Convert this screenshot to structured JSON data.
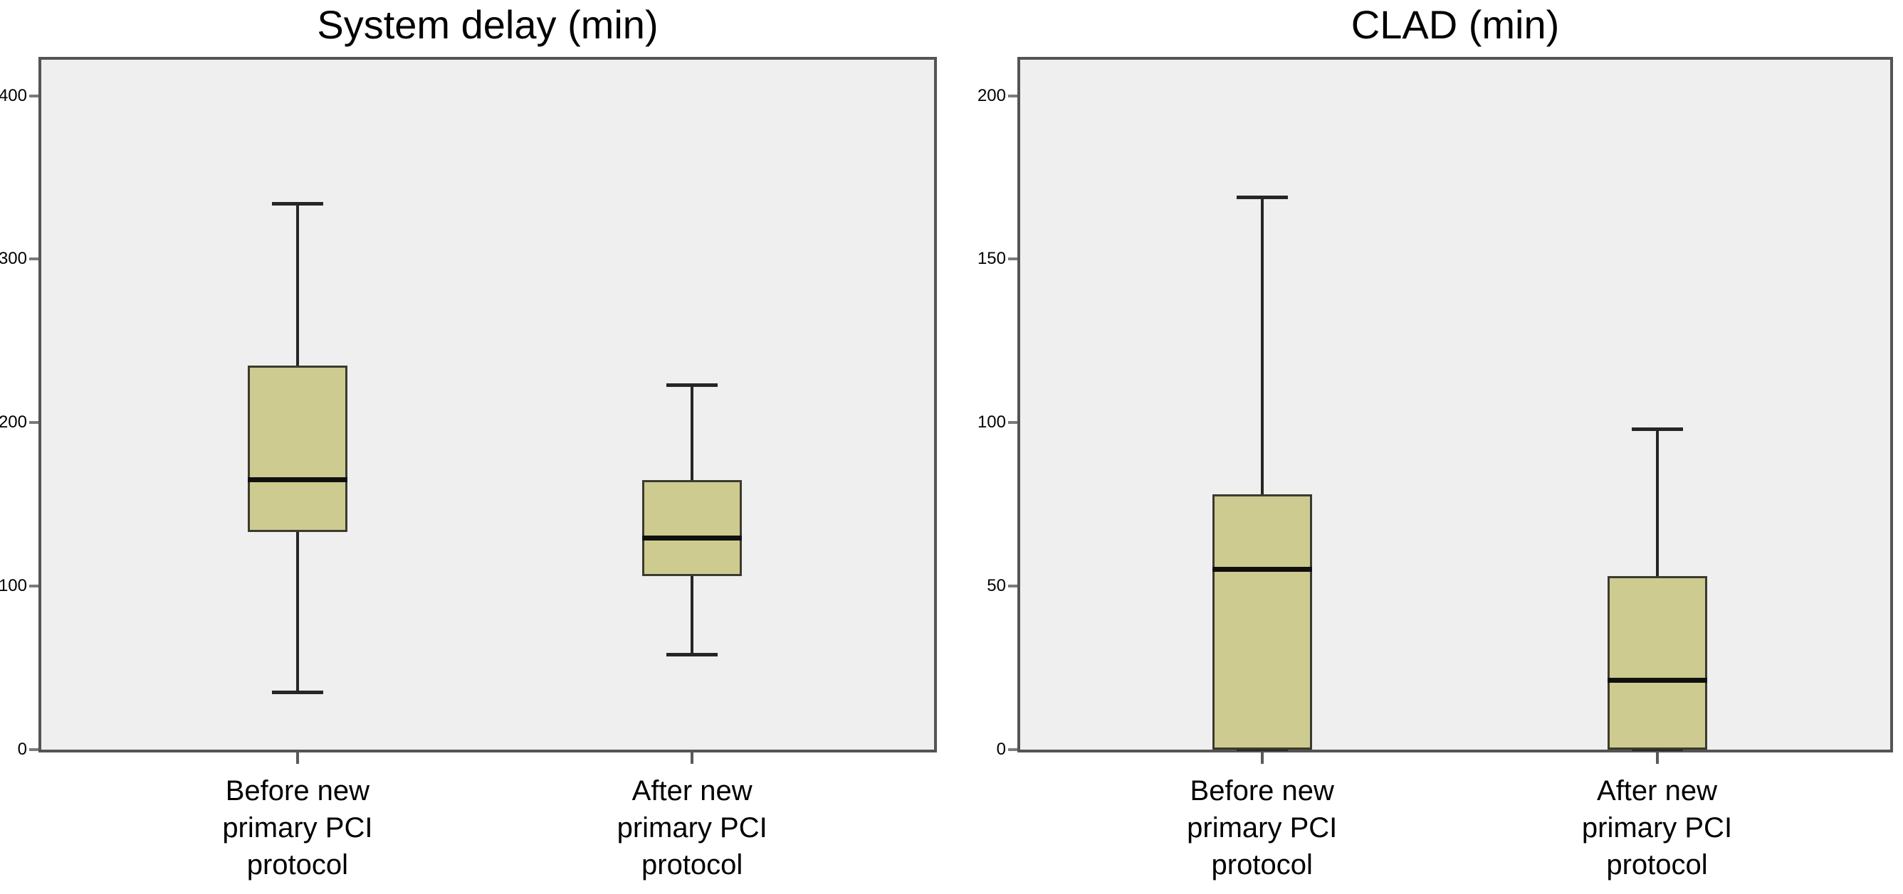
{
  "figure": {
    "background": "#ffffff"
  },
  "styles": {
    "box_fill": "#cecb90",
    "box_border": "#3b3b2f",
    "median_color": "#101010",
    "whisker_color": "#262626",
    "plot_background": "#f0eff0",
    "plot_border": "#545454",
    "ytick_mark_color": "#7a7a7a",
    "xtick_mark_color": "#5a5a5a",
    "text_color": "#000000"
  },
  "chart_data": [
    {
      "type": "boxplot",
      "title": "System delay (min)",
      "categories": [
        [
          "Before new",
          "primary PCI",
          "protocol"
        ],
        [
          "After new",
          "primary PCI",
          "protocol"
        ]
      ],
      "yticks": [
        0,
        100,
        200,
        300,
        400
      ],
      "ylim": [
        0,
        422
      ],
      "grid": false,
      "legend": false,
      "series": [
        {
          "name": "Before new primary PCI protocol",
          "min": 35,
          "q1": 133,
          "median": 165,
          "q3": 235,
          "max": 334
        },
        {
          "name": "After new primary PCI protocol",
          "min": 58,
          "q1": 106,
          "median": 129,
          "q3": 165,
          "max": 223
        }
      ]
    },
    {
      "type": "boxplot",
      "title": "CLAD (min)",
      "categories": [
        [
          "Before new",
          "primary PCI",
          "protocol"
        ],
        [
          "After new",
          "primary PCI",
          "protocol"
        ]
      ],
      "yticks": [
        0,
        50,
        100,
        150,
        200
      ],
      "ylim": [
        0,
        211
      ],
      "grid": false,
      "legend": false,
      "series": [
        {
          "name": "Before new primary PCI protocol",
          "min": 0,
          "q1": 0,
          "median": 55,
          "q3": 78,
          "max": 169
        },
        {
          "name": "After new primary PCI protocol",
          "min": 0,
          "q1": 0,
          "median": 21,
          "q3": 53,
          "max": 98
        }
      ]
    }
  ]
}
